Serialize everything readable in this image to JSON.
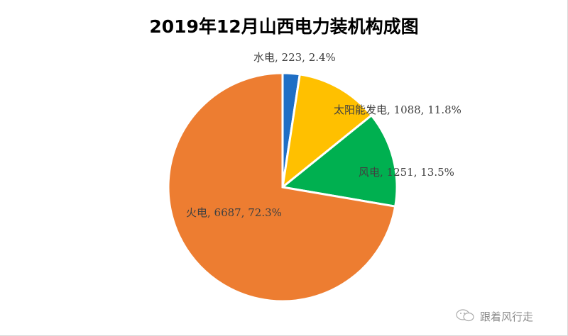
{
  "chart_data": {
    "type": "pie",
    "title": "2019年12月山西电力装机构成图",
    "start_angle": "top",
    "direction": "clockwise",
    "slices": [
      {
        "name": "水电",
        "value": 223,
        "percent": "2.4%",
        "color": "#1f6fc5"
      },
      {
        "name": "太阳能发电",
        "value": 1088,
        "percent": "11.8%",
        "color": "#ffc000"
      },
      {
        "name": "风电",
        "value": 1251,
        "percent": "13.5%",
        "color": "#00b050"
      },
      {
        "name": "火电",
        "value": 6687,
        "percent": "72.3%",
        "color": "#ed7d31"
      }
    ],
    "legend": "none"
  },
  "watermark": {
    "text": "跟着风行走",
    "icon": "wechat-icon"
  }
}
